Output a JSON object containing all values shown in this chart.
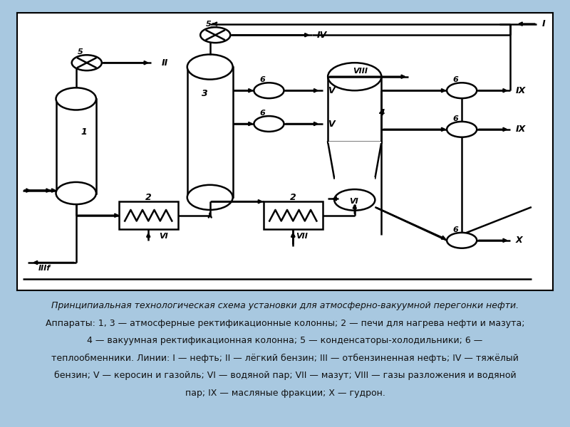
{
  "bg_color": "#a8c8e0",
  "line_color": "#000000",
  "line_width": 1.8,
  "caption_lines": [
    "Принципиальная технологическая схема установки для атмосферно-вакуумной перегонки нефти.",
    "Аппараты: 1, 3 — атмосферные ректификационные колонны; 2 — печи для нагрева нефти и мазута;",
    "4 — вакуумная ректификационная колонна; 5 — конденсаторы-холодильники; 6 —",
    "теплообменники. Линии: I — нефть; II — лёгкий бензин; III — отбензиненная нефть; IV — тяжёлый",
    "бензин; V — керосин и газойль; VI — водяной пар; VII — мазут; VIII — газы разложения и водяной",
    "пар; IX — масляные фракции; X — гудрон."
  ],
  "caption_fontsize": 9.0,
  "caption_italic_first": true
}
